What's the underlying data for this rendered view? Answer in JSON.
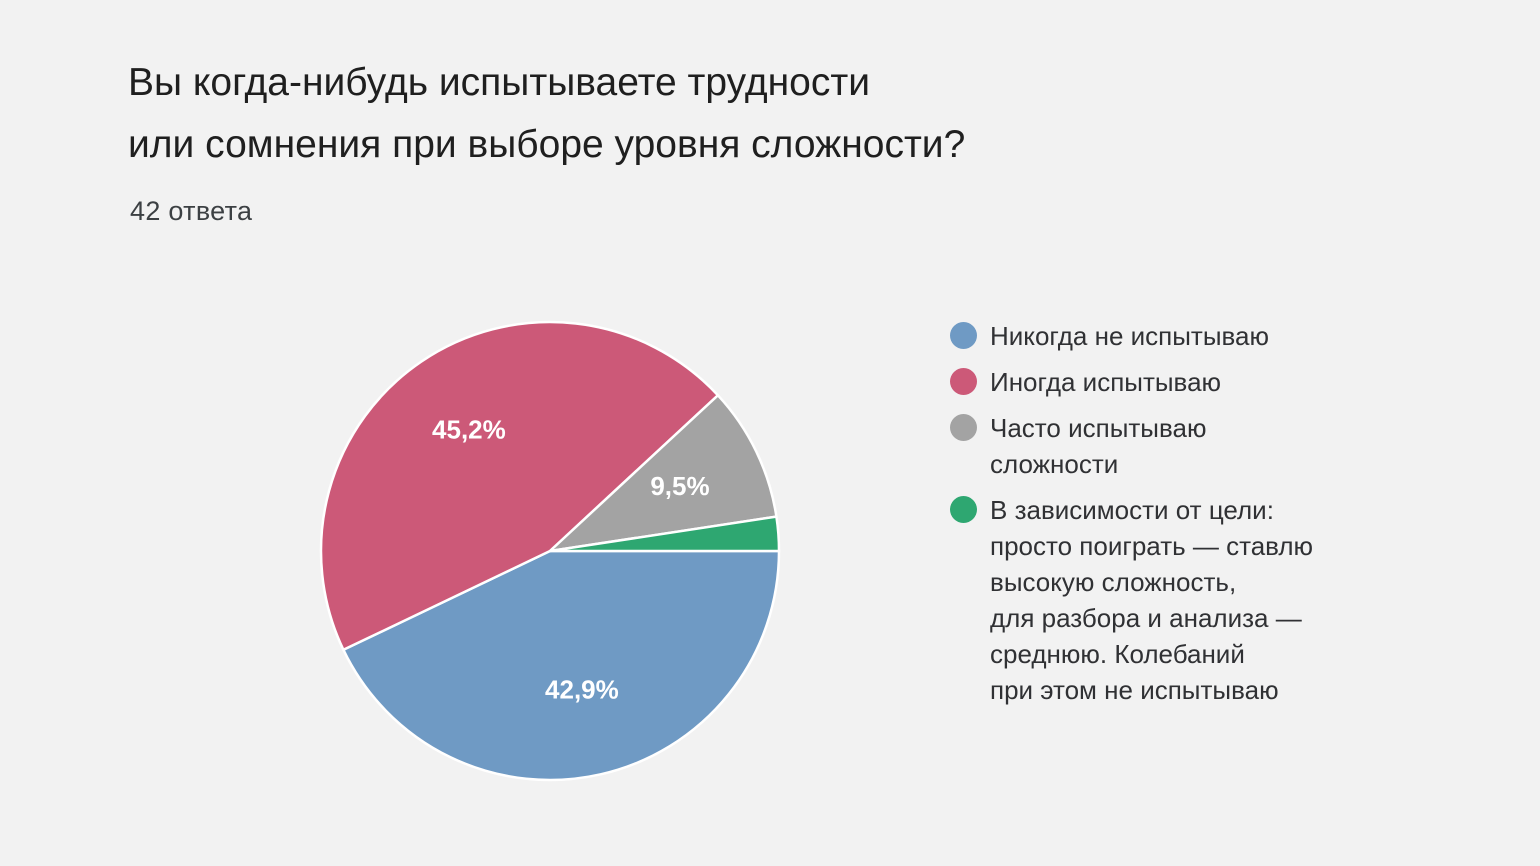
{
  "header": {
    "title_line1": "Вы когда-нибудь испытываете трудности",
    "title_line2": "или сомнения при выборе уровня сложности?",
    "responses": "42 ответа"
  },
  "colors": {
    "background": "#f2f2f2",
    "slice_border": "#ffffff"
  },
  "chart_data": {
    "type": "pie",
    "title": "Вы когда-нибудь испытываете трудности или сомнения при выборе уровня сложности?",
    "total_responses": 42,
    "legend_position": "right",
    "slices": [
      {
        "label": "Никогда не испытываю",
        "value": 42.9,
        "display": "42,9%",
        "color": "#6f9ac4",
        "icon": "legend-dot"
      },
      {
        "label": "Иногда испытываю",
        "value": 45.2,
        "display": "45,2%",
        "color": "#cc5978",
        "icon": "legend-dot"
      },
      {
        "label": "Часто испытываю\nсложности",
        "value": 9.5,
        "display": "9,5%",
        "color": "#a3a3a3",
        "icon": "legend-dot"
      },
      {
        "label": "В зависимости от цели:\nпросто поиграть — ставлю\nвысокую сложность,\nдля разбора и анализа —\nсреднюю. Колебаний\nпри этом не испытываю",
        "value": 2.4,
        "display": "",
        "color": "#2ea771",
        "icon": "legend-dot"
      }
    ]
  }
}
